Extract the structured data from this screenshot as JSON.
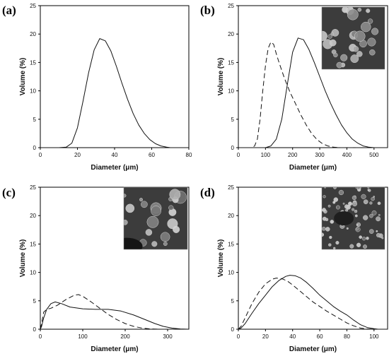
{
  "chart_data": [
    {
      "panel": "(a)",
      "type": "line",
      "xlabel": "Diameter (μm)",
      "ylabel": "Volume (%)",
      "xlim": [
        0,
        80
      ],
      "ylim": [
        0,
        25
      ],
      "xticks": [
        0,
        20,
        40,
        60,
        80
      ],
      "yticks": [
        0,
        5,
        10,
        15,
        20,
        25
      ],
      "inset_image": false,
      "series": [
        {
          "style": "solid",
          "x": [
            0,
            10,
            14,
            17,
            20,
            23,
            26,
            29,
            32,
            35,
            38,
            41,
            44,
            47,
            50,
            53,
            56,
            59,
            62,
            65,
            68,
            70,
            80
          ],
          "y": [
            0,
            0,
            0.1,
            0.8,
            3.5,
            8.2,
            13.2,
            17.2,
            19.2,
            18.8,
            17.0,
            14.3,
            11.3,
            8.5,
            6.0,
            4.0,
            2.5,
            1.4,
            0.7,
            0.3,
            0.1,
            0,
            0
          ]
        }
      ]
    },
    {
      "panel": "(b)",
      "type": "line",
      "xlabel": "Diameter (μm)",
      "ylabel": "Volume (%)",
      "xlim": [
        0,
        550
      ],
      "ylim": [
        0,
        25
      ],
      "xticks": [
        0,
        100,
        200,
        300,
        400,
        500
      ],
      "yticks": [
        0,
        5,
        10,
        15,
        20,
        25
      ],
      "inset_image": true,
      "series": [
        {
          "style": "dashed",
          "x": [
            0,
            50,
            60,
            70,
            80,
            90,
            100,
            110,
            120,
            130,
            140,
            150,
            170,
            190,
            210,
            230,
            250,
            270,
            290,
            310,
            330,
            350,
            370,
            380,
            550
          ],
          "y": [
            0,
            0,
            0.3,
            1.5,
            5.0,
            10.0,
            14.5,
            17.5,
            18.6,
            18.2,
            16.5,
            15.0,
            12.2,
            9.8,
            7.8,
            5.8,
            4.0,
            2.5,
            1.4,
            0.7,
            0.3,
            0.1,
            0,
            0,
            0
          ]
        },
        {
          "style": "solid",
          "x": [
            0,
            100,
            120,
            140,
            160,
            180,
            200,
            220,
            240,
            260,
            280,
            300,
            320,
            340,
            360,
            380,
            400,
            420,
            440,
            460,
            480,
            500,
            550
          ],
          "y": [
            0,
            0,
            0.3,
            1.5,
            5.0,
            11.0,
            16.8,
            19.3,
            19.0,
            17.3,
            15.0,
            12.5,
            10.0,
            7.8,
            5.8,
            4.0,
            2.6,
            1.5,
            0.8,
            0.3,
            0.1,
            0,
            0
          ]
        }
      ]
    },
    {
      "panel": "(c)",
      "type": "line",
      "xlabel": "Diameter (μm)",
      "ylabel": "Volume (%)",
      "xlim": [
        0,
        350
      ],
      "ylim": [
        0,
        25
      ],
      "xticks": [
        0,
        100,
        200,
        300
      ],
      "yticks": [
        0,
        5,
        10,
        15,
        20,
        25
      ],
      "inset_image": true,
      "series": [
        {
          "style": "solid",
          "x": [
            0,
            3,
            8,
            15,
            25,
            35,
            50,
            70,
            100,
            130,
            160,
            190,
            220,
            250,
            270,
            290,
            310,
            330,
            350
          ],
          "y": [
            0,
            0.5,
            2.0,
            3.5,
            4.5,
            4.8,
            4.5,
            3.9,
            3.6,
            3.5,
            3.5,
            3.2,
            2.5,
            1.6,
            1.0,
            0.5,
            0.2,
            0.05,
            0
          ]
        },
        {
          "style": "dashed",
          "x": [
            0,
            3,
            8,
            15,
            25,
            40,
            60,
            80,
            90,
            100,
            120,
            140,
            160,
            180,
            200,
            220,
            240,
            260,
            280,
            350
          ],
          "y": [
            0,
            1.0,
            3.0,
            3.5,
            3.7,
            4.2,
            5.2,
            6.0,
            6.1,
            5.8,
            4.8,
            3.7,
            2.6,
            1.7,
            1.0,
            0.5,
            0.2,
            0.05,
            0,
            0
          ]
        }
      ]
    },
    {
      "panel": "(d)",
      "type": "line",
      "xlabel": "Diameter (μm)",
      "ylabel": "Volume (%)",
      "xlim": [
        0,
        110
      ],
      "ylim": [
        0,
        25
      ],
      "xticks": [
        0,
        20,
        40,
        60,
        80,
        100
      ],
      "yticks": [
        0,
        5,
        10,
        15,
        20,
        25
      ],
      "inset_image": true,
      "series": [
        {
          "style": "solid",
          "x": [
            0,
            2,
            5,
            10,
            15,
            20,
            25,
            30,
            35,
            38,
            42,
            46,
            50,
            55,
            60,
            65,
            70,
            75,
            80,
            85,
            90,
            95,
            100,
            103,
            110
          ],
          "y": [
            0,
            0.2,
            1.0,
            2.8,
            4.5,
            6.0,
            7.5,
            8.6,
            9.3,
            9.5,
            9.4,
            9.0,
            8.3,
            7.2,
            6.0,
            5.0,
            4.0,
            3.2,
            2.5,
            1.6,
            0.8,
            0.3,
            0.1,
            0,
            0
          ]
        },
        {
          "style": "dashed",
          "x": [
            0,
            2,
            5,
            10,
            15,
            20,
            25,
            28,
            32,
            36,
            40,
            45,
            50,
            55,
            60,
            65,
            70,
            75,
            80,
            85,
            90,
            95,
            100,
            110
          ],
          "y": [
            0,
            0.5,
            2.0,
            4.5,
            6.5,
            8.0,
            8.8,
            9.0,
            8.9,
            8.5,
            7.8,
            6.8,
            5.8,
            4.8,
            4.0,
            3.2,
            2.5,
            1.8,
            1.1,
            0.6,
            0.2,
            0.05,
            0,
            0
          ]
        }
      ]
    }
  ]
}
